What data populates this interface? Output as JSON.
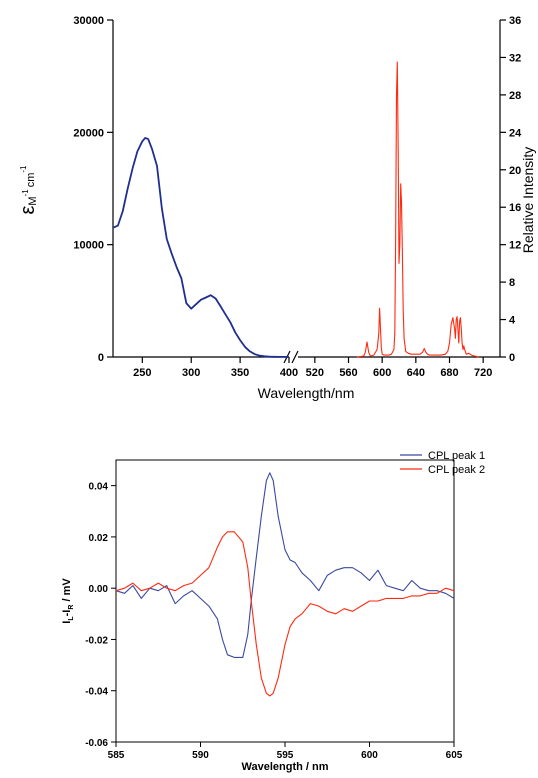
{
  "chart_data": [
    {
      "id": "absorption-emission",
      "type": "line",
      "title": "",
      "xlabel": "Wavelength/nm",
      "ylabel_left": "εM-1cm-1",
      "ylabel_left_parts": {
        "symbol": "ε",
        "sub": "M",
        "sup1": "-1",
        "cm": "cm",
        "sup2": "-1"
      },
      "ylabel_right": "Relative Intensity",
      "axis_break": "//",
      "x_left_segment": {
        "xlim": [
          220,
          400
        ],
        "ticks": [
          250,
          300,
          350,
          400
        ],
        "tick_labels": [
          "250",
          "300",
          "350",
          "400"
        ]
      },
      "x_right_segment": {
        "xlim": [
          500,
          740
        ],
        "ticks": [
          520,
          560,
          600,
          640,
          680,
          720
        ],
        "tick_labels": [
          "520",
          "560",
          "600",
          "640",
          "680",
          "720"
        ]
      },
      "ylim_left": [
        0,
        30000
      ],
      "yticks_left": [
        0,
        10000,
        20000,
        30000
      ],
      "ytick_labels_left": [
        "0",
        "10000",
        "20000",
        "30000"
      ],
      "ylim_right": [
        0,
        36
      ],
      "yticks_right": [
        0,
        4,
        8,
        12,
        16,
        20,
        24,
        28,
        32,
        36
      ],
      "ytick_labels_right": [
        "0",
        "4",
        "8",
        "12",
        "16",
        "20",
        "24",
        "28",
        "32",
        "36"
      ],
      "grid": false,
      "series": [
        {
          "color": "#1f2f8f",
          "axis": "left",
          "segment": "left",
          "x": [
            220,
            225,
            230,
            235,
            240,
            245,
            250,
            253,
            256,
            260,
            265,
            270,
            275,
            280,
            285,
            290,
            295,
            300,
            305,
            310,
            315,
            320,
            325,
            330,
            335,
            340,
            345,
            350,
            355,
            360,
            365,
            370,
            375,
            380,
            385,
            390,
            395,
            400
          ],
          "y": [
            11500,
            11700,
            13000,
            15000,
            16800,
            18300,
            19200,
            19500,
            19400,
            18500,
            17000,
            13200,
            10500,
            9200,
            8000,
            7000,
            4800,
            4300,
            4700,
            5100,
            5300,
            5500,
            5200,
            4500,
            3800,
            3100,
            2200,
            1500,
            900,
            500,
            250,
            120,
            60,
            30,
            15,
            10,
            5,
            0
          ]
        },
        {
          "color": "#ff2a10",
          "axis": "right",
          "segment": "right",
          "x": [
            570,
            578,
            580,
            582,
            584,
            586,
            590,
            594,
            596,
            597,
            598,
            599,
            600,
            602,
            605,
            608,
            611,
            614,
            615,
            616,
            617,
            618,
            619,
            620,
            621,
            622,
            623,
            624,
            625,
            626,
            628,
            631,
            634,
            637,
            640,
            645,
            648,
            650,
            652,
            654,
            656,
            660,
            665,
            670,
            675,
            678,
            680,
            682,
            684,
            686,
            687,
            688,
            689,
            690,
            691,
            692,
            693,
            694,
            695,
            696,
            697,
            698,
            700,
            703,
            706,
            710,
            715
          ],
          "y": [
            0,
            0.1,
            0.5,
            1.6,
            0.5,
            0.1,
            0.2,
            0.8,
            2.5,
            5.2,
            3.0,
            1.0,
            0.3,
            0.2,
            0.2,
            0.2,
            0.3,
            0.8,
            2.5,
            12,
            28,
            31.5,
            22,
            10,
            12,
            18.5,
            16.5,
            11,
            5,
            2,
            0.6,
            0.4,
            0.3,
            0.3,
            0.3,
            0.3,
            0.5,
            0.9,
            0.5,
            0.3,
            0.2,
            0.2,
            0.2,
            0.2,
            0.3,
            0.6,
            1.5,
            3.5,
            4.2,
            3.0,
            2.0,
            4.0,
            4.3,
            3.0,
            1.5,
            3.8,
            4.2,
            3.0,
            1.5,
            0.8,
            1.2,
            0.8,
            0.3,
            0.4,
            0.2,
            0.1,
            0
          ]
        }
      ]
    },
    {
      "id": "cpl",
      "type": "line",
      "title": "",
      "xlabel": "Wavelength / nm",
      "ylabel": "IL-IR / mV",
      "ylabel_parts": {
        "i1": "I",
        "s1": "L",
        "dash": "-I",
        "s2": "R",
        "rest": " / mV"
      },
      "xlim": [
        585,
        605
      ],
      "xticks": [
        585,
        590,
        595,
        600,
        605
      ],
      "xtick_labels": [
        "585",
        "590",
        "595",
        "600",
        "605"
      ],
      "ylim": [
        -0.06,
        0.05
      ],
      "yticks": [
        -0.06,
        -0.04,
        -0.02,
        0.0,
        0.02,
        0.04
      ],
      "ytick_labels": [
        "-0.06",
        "-0.04",
        "-0.02",
        "0.00",
        "0.02",
        "0.04"
      ],
      "grid": false,
      "legend_position": "top-right",
      "series": [
        {
          "name": "CPL peak 1",
          "color": "#3a4a9e",
          "x": [
            585,
            585.5,
            586,
            586.5,
            587,
            587.5,
            588,
            588.5,
            589,
            589.5,
            590,
            590.5,
            591,
            591.3,
            591.6,
            592,
            592.5,
            592.8,
            593,
            593.3,
            593.6,
            593.9,
            594.1,
            594.3,
            594.6,
            595,
            595.3,
            595.6,
            596,
            596.5,
            597,
            597.5,
            598,
            598.5,
            599,
            599.5,
            600,
            600.5,
            601,
            601.5,
            602,
            602.5,
            603,
            603.5,
            604,
            604.5,
            605
          ],
          "y": [
            -0.001,
            -0.002,
            0.001,
            -0.004,
            0.0,
            -0.001,
            0.001,
            -0.006,
            -0.003,
            -0.001,
            -0.004,
            -0.007,
            -0.012,
            -0.02,
            -0.026,
            -0.027,
            -0.027,
            -0.018,
            -0.005,
            0.012,
            0.028,
            0.042,
            0.045,
            0.042,
            0.028,
            0.015,
            0.011,
            0.01,
            0.006,
            0.003,
            -0.001,
            0.005,
            0.007,
            0.008,
            0.008,
            0.006,
            0.003,
            0.007,
            0.001,
            0.0,
            -0.001,
            0.003,
            0.0,
            -0.001,
            -0.001,
            -0.002,
            -0.004
          ]
        },
        {
          "name": "CPL peak 2",
          "color": "#ff2a10",
          "x": [
            585,
            585.5,
            586,
            586.5,
            587,
            587.5,
            588,
            588.5,
            589,
            589.5,
            590,
            590.5,
            591,
            591.3,
            591.6,
            592,
            592.5,
            592.8,
            593,
            593.3,
            593.6,
            593.9,
            594.1,
            594.3,
            594.6,
            595,
            595.3,
            595.6,
            596,
            596.5,
            597,
            597.5,
            598,
            598.5,
            599,
            599.5,
            600,
            600.5,
            601,
            601.5,
            602,
            602.5,
            603,
            603.5,
            604,
            604.5,
            605
          ],
          "y": [
            -0.001,
            0.0,
            0.002,
            -0.001,
            0.0,
            0.002,
            0.0,
            -0.001,
            0.001,
            0.002,
            0.005,
            0.008,
            0.016,
            0.02,
            0.022,
            0.022,
            0.018,
            0.008,
            -0.005,
            -0.022,
            -0.035,
            -0.041,
            -0.042,
            -0.041,
            -0.035,
            -0.022,
            -0.015,
            -0.012,
            -0.01,
            -0.006,
            -0.007,
            -0.009,
            -0.01,
            -0.008,
            -0.009,
            -0.007,
            -0.005,
            -0.005,
            -0.004,
            -0.004,
            -0.004,
            -0.003,
            -0.003,
            -0.002,
            -0.002,
            0.0,
            -0.001
          ]
        }
      ]
    }
  ]
}
